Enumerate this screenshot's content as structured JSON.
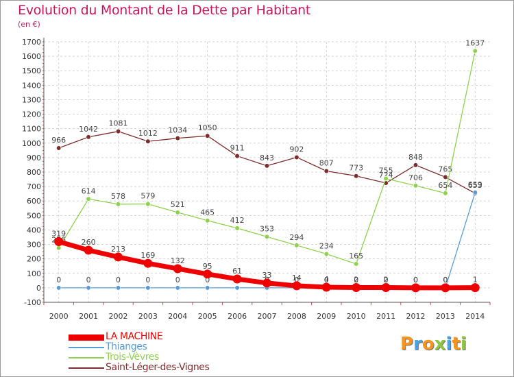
{
  "chart_data": {
    "type": "line",
    "title": "Evolution du Montant de la Dette par Habitant",
    "subtitle": "(en €)",
    "x": [
      "2000",
      "2001",
      "2002",
      "2003",
      "2004",
      "2005",
      "2006",
      "2007",
      "2008",
      "2009",
      "2010",
      "2011",
      "2012",
      "2013",
      "2014"
    ],
    "ylim": [
      -100,
      1700
    ],
    "yticks": [
      -100,
      0,
      100,
      200,
      300,
      400,
      500,
      600,
      700,
      800,
      900,
      1000,
      1100,
      1200,
      1300,
      1400,
      1500,
      1600,
      1700
    ],
    "grid": true,
    "legend_position": "bottom-left",
    "series": [
      {
        "name": "LA MACHINE",
        "color": "#ee0000",
        "values": [
          319,
          260,
          213,
          169,
          132,
          95,
          61,
          33,
          14,
          4,
          2,
          2,
          0,
          0,
          1
        ]
      },
      {
        "name": "Thianges",
        "color": "#5b9bd5",
        "values": [
          0,
          0,
          0,
          0,
          0,
          0,
          0,
          0,
          0,
          0,
          0,
          0,
          0,
          0,
          659
        ]
      },
      {
        "name": "Trois-Vèvres",
        "color": "#8fd14f",
        "values": [
          276,
          614,
          578,
          579,
          521,
          465,
          412,
          353,
          294,
          234,
          165,
          755,
          706,
          654,
          1637
        ]
      },
      {
        "name": "Saint-Léger-des-Vignes",
        "color": "#7b2d2d",
        "values": [
          966,
          1042,
          1081,
          1012,
          1034,
          1050,
          911,
          843,
          902,
          807,
          773,
          724,
          848,
          765,
          653
        ]
      }
    ]
  },
  "logo": {
    "text": "Proxiti",
    "colors": [
      "#f7941d",
      "#4aa3df",
      "#f7941d",
      "#8dc63f",
      "#4aa3df",
      "#f7941d",
      "#8dc63f"
    ]
  }
}
